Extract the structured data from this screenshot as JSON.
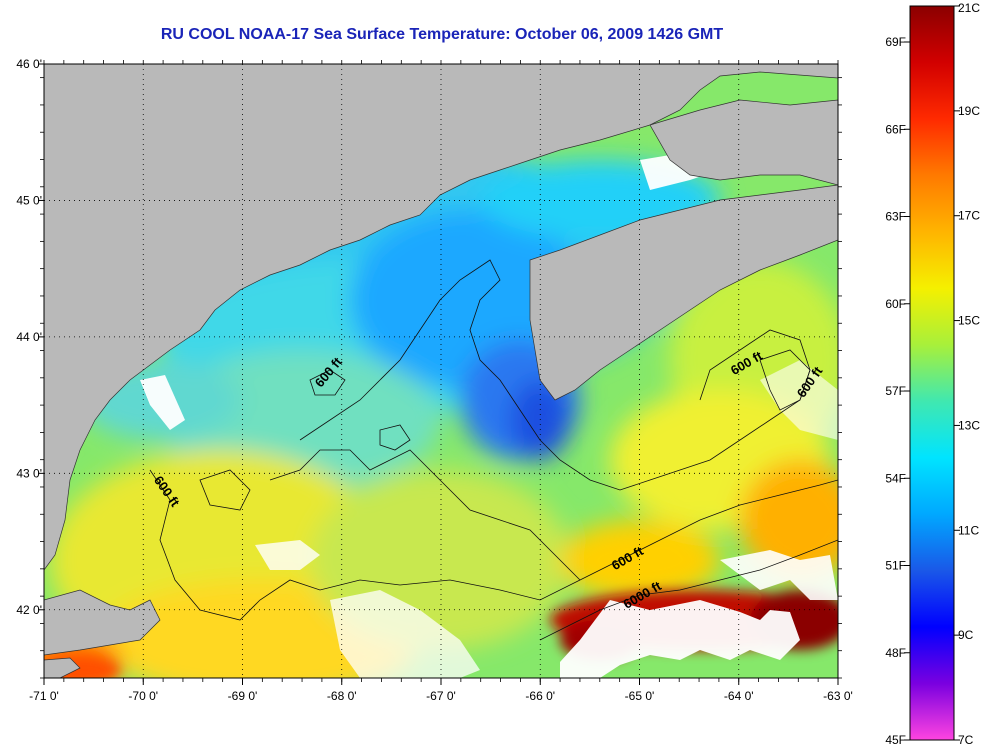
{
  "title": "RU COOL  NOAA-17  Sea Surface Temperature:  October 06, 2009 1426 GMT",
  "map": {
    "lon_range": [
      -71,
      -63
    ],
    "lat_range": [
      41.5,
      46
    ],
    "lon_ticks": [
      "-71 0'",
      "-70 0'",
      "-69 0'",
      "-68 0'",
      "-67 0'",
      "-66 0'",
      "-65 0'",
      "-64 0'",
      "-63 0'"
    ],
    "lat_ticks": [
      {
        "lat": 46,
        "label": "46 0'"
      },
      {
        "lat": 45,
        "label": "45 0'"
      },
      {
        "lat": 44,
        "label": "44 0'"
      },
      {
        "lat": 43,
        "label": "43 0'"
      },
      {
        "lat": 42,
        "label": "42 0'"
      }
    ],
    "grid": true,
    "land_color": "#b9b9b9",
    "no_data_color": "#ffffff",
    "contour_labels": [
      {
        "text": "600 ft",
        "lon": -68.1,
        "lat": 43.72,
        "rot": -50
      },
      {
        "text": "600 ft",
        "lon": -69.8,
        "lat": 42.85,
        "rot": 55
      },
      {
        "text": "600 ft",
        "lon": -63.9,
        "lat": 43.78,
        "rot": -30
      },
      {
        "text": "600 ft",
        "lon": -63.25,
        "lat": 43.65,
        "rot": -55
      },
      {
        "text": "600 ft",
        "lon": -65.1,
        "lat": 42.35,
        "rot": -30
      },
      {
        "text": "6000 ft",
        "lon": -64.95,
        "lat": 42.08,
        "rot": -30
      }
    ]
  },
  "colorbar": {
    "celsius_labels": [
      "21C",
      "19C",
      "17C",
      "15C",
      "13C",
      "11C",
      "9C",
      "7C"
    ],
    "fahrenheit_labels": [
      "69F",
      "66F",
      "63F",
      "60F",
      "57F",
      "54F",
      "51F",
      "48F",
      "45F"
    ],
    "colors": [
      "#8b0000",
      "#d20000",
      "#ff2a00",
      "#ff7a00",
      "#ffb400",
      "#f5f000",
      "#a8f03a",
      "#40e8b0",
      "#00e4ff",
      "#00a8ff",
      "#1a58e8",
      "#0000ff",
      "#7a00e0",
      "#ff44e0"
    ]
  }
}
